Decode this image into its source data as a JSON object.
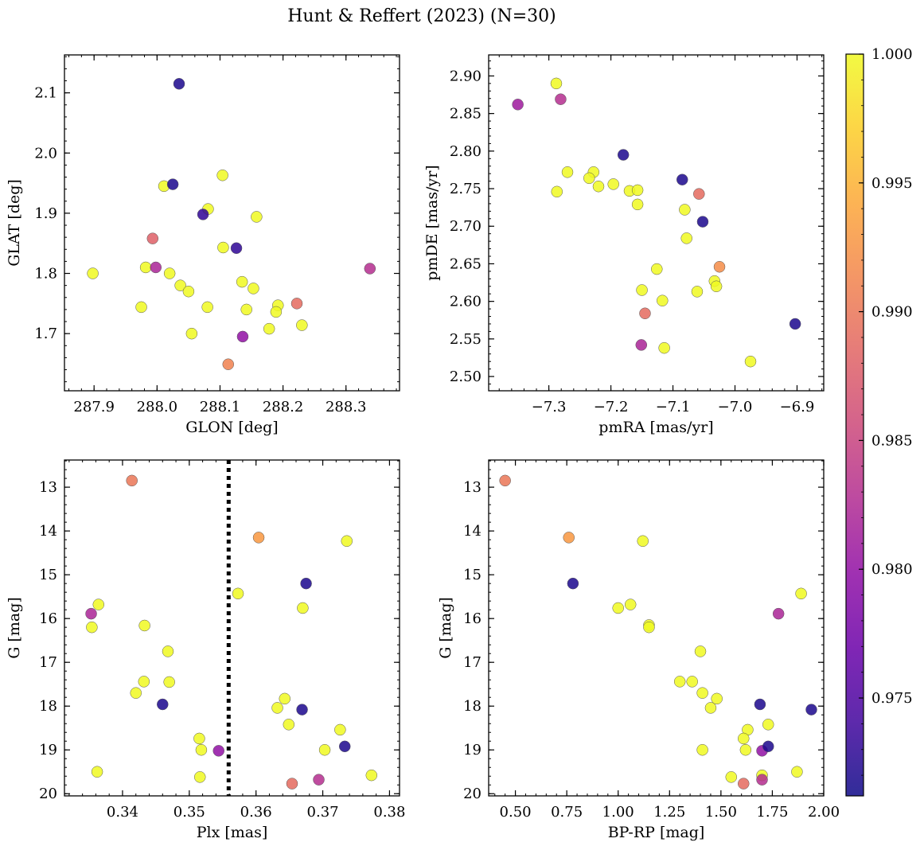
{
  "figure": {
    "title": "Hunt & Reffert (2023) (N=30)"
  },
  "colorbar": {
    "range": [
      0.9712,
      1.0
    ],
    "colormap": "plasma",
    "ticks": [
      {
        "value": 1.0,
        "label": "1.000"
      },
      {
        "value": 0.995,
        "label": "0.995"
      },
      {
        "value": 0.99,
        "label": "0.990"
      },
      {
        "value": 0.985,
        "label": "0.985"
      },
      {
        "value": 0.98,
        "label": "0.980"
      },
      {
        "value": 0.975,
        "label": "0.975"
      }
    ]
  },
  "chart_data": [
    {
      "type": "scatter",
      "xlabel": "GLON [deg]",
      "ylabel": "GLAT [deg]",
      "xlim": [
        287.853,
        288.385
      ],
      "ylim": [
        1.605,
        2.163
      ],
      "y_inverted": false,
      "xticks": [
        {
          "value": 287.9,
          "label": "287.9"
        },
        {
          "value": 288.0,
          "label": "288.0"
        },
        {
          "value": 288.1,
          "label": "288.1"
        },
        {
          "value": 288.2,
          "label": "288.2"
        },
        {
          "value": 288.3,
          "label": "288.3"
        }
      ],
      "yticks": [
        {
          "value": 1.7,
          "label": "1.7"
        },
        {
          "value": 1.8,
          "label": "1.8"
        },
        {
          "value": 1.9,
          "label": "1.9"
        },
        {
          "value": 2.0,
          "label": "2.0"
        },
        {
          "value": 2.1,
          "label": "2.1"
        }
      ],
      "points": [
        {
          "x": 288.035,
          "y": 2.115,
          "c": 0.972
        },
        {
          "x": 288.025,
          "y": 1.948,
          "c": 0.972
        },
        {
          "x": 288.011,
          "y": 1.945,
          "c": 1.0
        },
        {
          "x": 288.104,
          "y": 1.963,
          "c": 1.0
        },
        {
          "x": 288.081,
          "y": 1.907,
          "c": 1.0
        },
        {
          "x": 288.073,
          "y": 1.898,
          "c": 0.973
        },
        {
          "x": 288.158,
          "y": 1.894,
          "c": 1.0
        },
        {
          "x": 287.993,
          "y": 1.858,
          "c": 0.988
        },
        {
          "x": 288.105,
          "y": 1.843,
          "c": 1.0
        },
        {
          "x": 288.126,
          "y": 1.842,
          "c": 0.973
        },
        {
          "x": 287.982,
          "y": 1.81,
          "c": 1.0
        },
        {
          "x": 287.998,
          "y": 1.81,
          "c": 0.982
        },
        {
          "x": 287.898,
          "y": 1.8,
          "c": 1.0
        },
        {
          "x": 288.02,
          "y": 1.8,
          "c": 1.0
        },
        {
          "x": 288.338,
          "y": 1.808,
          "c": 0.983
        },
        {
          "x": 288.135,
          "y": 1.786,
          "c": 1.0
        },
        {
          "x": 288.037,
          "y": 1.78,
          "c": 1.0
        },
        {
          "x": 288.153,
          "y": 1.775,
          "c": 1.0
        },
        {
          "x": 288.05,
          "y": 1.77,
          "c": 1.0
        },
        {
          "x": 287.975,
          "y": 1.744,
          "c": 1.0
        },
        {
          "x": 288.08,
          "y": 1.744,
          "c": 1.0
        },
        {
          "x": 288.192,
          "y": 1.747,
          "c": 1.0
        },
        {
          "x": 288.222,
          "y": 1.75,
          "c": 0.989
        },
        {
          "x": 288.142,
          "y": 1.74,
          "c": 1.0
        },
        {
          "x": 288.189,
          "y": 1.736,
          "c": 1.0
        },
        {
          "x": 288.23,
          "y": 1.714,
          "c": 1.0
        },
        {
          "x": 288.178,
          "y": 1.708,
          "c": 1.0
        },
        {
          "x": 288.055,
          "y": 1.7,
          "c": 1.0
        },
        {
          "x": 288.136,
          "y": 1.695,
          "c": 0.98
        },
        {
          "x": 288.113,
          "y": 1.649,
          "c": 0.991
        }
      ]
    },
    {
      "type": "scatter",
      "xlabel": "pmRA [mas/yr]",
      "ylabel": "pmDE [mas/yr]",
      "xlim": [
        -7.397,
        -6.857
      ],
      "ylim": [
        2.481,
        2.928
      ],
      "y_inverted": false,
      "xticks": [
        {
          "value": -7.3,
          "label": "−7.3"
        },
        {
          "value": -7.2,
          "label": "−7.2"
        },
        {
          "value": -7.1,
          "label": "−7.1"
        },
        {
          "value": -7.0,
          "label": "−7.0"
        },
        {
          "value": -6.9,
          "label": "−6.9"
        }
      ],
      "yticks": [
        {
          "value": 2.5,
          "label": "2.50"
        },
        {
          "value": 2.55,
          "label": "2.55"
        },
        {
          "value": 2.6,
          "label": "2.60"
        },
        {
          "value": 2.65,
          "label": "2.65"
        },
        {
          "value": 2.7,
          "label": "2.70"
        },
        {
          "value": 2.75,
          "label": "2.75"
        },
        {
          "value": 2.8,
          "label": "2.80"
        },
        {
          "value": 2.85,
          "label": "2.85"
        },
        {
          "value": 2.9,
          "label": "2.90"
        }
      ],
      "points": [
        {
          "x": -7.288,
          "y": 2.89,
          "c": 1.0
        },
        {
          "x": -7.35,
          "y": 2.862,
          "c": 0.981
        },
        {
          "x": -7.281,
          "y": 2.869,
          "c": 0.983
        },
        {
          "x": -7.18,
          "y": 2.795,
          "c": 0.972
        },
        {
          "x": -7.27,
          "y": 2.772,
          "c": 1.0
        },
        {
          "x": -7.228,
          "y": 2.772,
          "c": 1.0
        },
        {
          "x": -7.235,
          "y": 2.764,
          "c": 1.0
        },
        {
          "x": -7.196,
          "y": 2.756,
          "c": 1.0
        },
        {
          "x": -7.22,
          "y": 2.753,
          "c": 1.0
        },
        {
          "x": -7.287,
          "y": 2.746,
          "c": 1.0
        },
        {
          "x": -7.17,
          "y": 2.747,
          "c": 1.0
        },
        {
          "x": -7.157,
          "y": 2.748,
          "c": 1.0
        },
        {
          "x": -7.157,
          "y": 2.729,
          "c": 1.0
        },
        {
          "x": -7.085,
          "y": 2.762,
          "c": 0.972
        },
        {
          "x": -7.058,
          "y": 2.743,
          "c": 0.989
        },
        {
          "x": -7.081,
          "y": 2.722,
          "c": 1.0
        },
        {
          "x": -7.052,
          "y": 2.706,
          "c": 0.972
        },
        {
          "x": -7.078,
          "y": 2.684,
          "c": 1.0
        },
        {
          "x": -7.126,
          "y": 2.643,
          "c": 1.0
        },
        {
          "x": -7.025,
          "y": 2.646,
          "c": 0.992
        },
        {
          "x": -7.033,
          "y": 2.627,
          "c": 1.0
        },
        {
          "x": -7.03,
          "y": 2.62,
          "c": 1.0
        },
        {
          "x": -7.15,
          "y": 2.615,
          "c": 1.0
        },
        {
          "x": -7.061,
          "y": 2.613,
          "c": 1.0
        },
        {
          "x": -7.117,
          "y": 2.601,
          "c": 1.0
        },
        {
          "x": -7.145,
          "y": 2.584,
          "c": 0.989
        },
        {
          "x": -7.151,
          "y": 2.542,
          "c": 0.982
        },
        {
          "x": -7.114,
          "y": 2.538,
          "c": 1.0
        },
        {
          "x": -6.903,
          "y": 2.57,
          "c": 0.972
        },
        {
          "x": -6.975,
          "y": 2.52,
          "c": 1.0
        }
      ]
    },
    {
      "type": "scatter",
      "xlabel": "Plx [mas]",
      "ylabel": "G [mag]",
      "xlim": [
        0.3313,
        0.3815
      ],
      "ylim": [
        12.38,
        20.05
      ],
      "y_inverted": true,
      "vline": {
        "x": 0.3559,
        "style": "dotted",
        "color": "#000000"
      },
      "xticks": [
        {
          "value": 0.34,
          "label": "0.34"
        },
        {
          "value": 0.35,
          "label": "0.35"
        },
        {
          "value": 0.36,
          "label": "0.36"
        },
        {
          "value": 0.37,
          "label": "0.37"
        },
        {
          "value": 0.38,
          "label": "0.38"
        }
      ],
      "yticks": [
        {
          "value": 13,
          "label": "13"
        },
        {
          "value": 14,
          "label": "14"
        },
        {
          "value": 15,
          "label": "15"
        },
        {
          "value": 16,
          "label": "16"
        },
        {
          "value": 17,
          "label": "17"
        },
        {
          "value": 18,
          "label": "18"
        },
        {
          "value": 19,
          "label": "19"
        },
        {
          "value": 20,
          "label": "20"
        }
      ],
      "points": [
        {
          "x": 0.3414,
          "y": 12.85,
          "c": 0.99
        },
        {
          "x": 0.3604,
          "y": 14.15,
          "c": 0.993
        },
        {
          "x": 0.3736,
          "y": 14.23,
          "c": 1.0
        },
        {
          "x": 0.3675,
          "y": 15.2,
          "c": 0.972
        },
        {
          "x": 0.3573,
          "y": 15.43,
          "c": 1.0
        },
        {
          "x": 0.3364,
          "y": 15.68,
          "c": 1.0
        },
        {
          "x": 0.367,
          "y": 15.76,
          "c": 1.0
        },
        {
          "x": 0.3353,
          "y": 15.89,
          "c": 0.982
        },
        {
          "x": 0.3354,
          "y": 16.2,
          "c": 1.0
        },
        {
          "x": 0.3433,
          "y": 16.16,
          "c": 1.0
        },
        {
          "x": 0.3468,
          "y": 16.75,
          "c": 1.0
        },
        {
          "x": 0.3432,
          "y": 17.44,
          "c": 1.0
        },
        {
          "x": 0.347,
          "y": 17.45,
          "c": 1.0
        },
        {
          "x": 0.342,
          "y": 17.7,
          "c": 1.0
        },
        {
          "x": 0.3643,
          "y": 17.83,
          "c": 1.0
        },
        {
          "x": 0.346,
          "y": 17.96,
          "c": 0.972
        },
        {
          "x": 0.3632,
          "y": 18.04,
          "c": 1.0
        },
        {
          "x": 0.3669,
          "y": 18.08,
          "c": 0.972
        },
        {
          "x": 0.3649,
          "y": 18.42,
          "c": 1.0
        },
        {
          "x": 0.3726,
          "y": 18.54,
          "c": 1.0
        },
        {
          "x": 0.3515,
          "y": 18.74,
          "c": 1.0
        },
        {
          "x": 0.3733,
          "y": 18.92,
          "c": 0.972
        },
        {
          "x": 0.3518,
          "y": 19.0,
          "c": 1.0
        },
        {
          "x": 0.3544,
          "y": 19.02,
          "c": 0.98
        },
        {
          "x": 0.3703,
          "y": 19.0,
          "c": 1.0
        },
        {
          "x": 0.3362,
          "y": 19.5,
          "c": 1.0
        },
        {
          "x": 0.3516,
          "y": 19.62,
          "c": 1.0
        },
        {
          "x": 0.3773,
          "y": 19.58,
          "c": 1.0
        },
        {
          "x": 0.3654,
          "y": 19.77,
          "c": 0.989
        },
        {
          "x": 0.3694,
          "y": 19.68,
          "c": 0.983
        }
      ]
    },
    {
      "type": "scatter",
      "xlabel": "BP-RP [mag]",
      "ylabel": "G [mag]",
      "xlim": [
        0.37,
        2.0
      ],
      "ylim": [
        12.38,
        20.05
      ],
      "y_inverted": true,
      "xticks": [
        {
          "value": 0.5,
          "label": "0.50"
        },
        {
          "value": 0.75,
          "label": "0.75"
        },
        {
          "value": 1.0,
          "label": "1.00"
        },
        {
          "value": 1.25,
          "label": "1.25"
        },
        {
          "value": 1.5,
          "label": "1.50"
        },
        {
          "value": 1.75,
          "label": "1.75"
        },
        {
          "value": 2.0,
          "label": "2.00"
        }
      ],
      "yticks": [
        {
          "value": 13,
          "label": "13"
        },
        {
          "value": 14,
          "label": "14"
        },
        {
          "value": 15,
          "label": "15"
        },
        {
          "value": 16,
          "label": "16"
        },
        {
          "value": 17,
          "label": "17"
        },
        {
          "value": 18,
          "label": "18"
        },
        {
          "value": 19,
          "label": "19"
        },
        {
          "value": 20,
          "label": "20"
        }
      ],
      "points": [
        {
          "x": 0.45,
          "y": 12.85,
          "c": 0.99
        },
        {
          "x": 0.76,
          "y": 14.15,
          "c": 0.993
        },
        {
          "x": 1.12,
          "y": 14.23,
          "c": 1.0
        },
        {
          "x": 0.78,
          "y": 15.2,
          "c": 0.972
        },
        {
          "x": 1.89,
          "y": 15.43,
          "c": 1.0
        },
        {
          "x": 1.06,
          "y": 15.68,
          "c": 1.0
        },
        {
          "x": 1.0,
          "y": 15.76,
          "c": 1.0
        },
        {
          "x": 1.78,
          "y": 15.89,
          "c": 0.982
        },
        {
          "x": 1.15,
          "y": 16.15,
          "c": 1.0
        },
        {
          "x": 1.15,
          "y": 16.2,
          "c": 1.0
        },
        {
          "x": 1.4,
          "y": 16.75,
          "c": 1.0
        },
        {
          "x": 1.3,
          "y": 17.44,
          "c": 1.0
        },
        {
          "x": 1.36,
          "y": 17.44,
          "c": 1.0
        },
        {
          "x": 1.41,
          "y": 17.7,
          "c": 1.0
        },
        {
          "x": 1.48,
          "y": 17.83,
          "c": 1.0
        },
        {
          "x": 1.69,
          "y": 17.96,
          "c": 0.972
        },
        {
          "x": 1.45,
          "y": 18.04,
          "c": 1.0
        },
        {
          "x": 1.94,
          "y": 18.08,
          "c": 0.972
        },
        {
          "x": 1.73,
          "y": 18.42,
          "c": 1.0
        },
        {
          "x": 1.63,
          "y": 18.54,
          "c": 1.0
        },
        {
          "x": 1.61,
          "y": 18.74,
          "c": 1.0
        },
        {
          "x": 1.73,
          "y": 18.92,
          "c": 0.972
        },
        {
          "x": 1.41,
          "y": 19.0,
          "c": 1.0
        },
        {
          "x": 1.62,
          "y": 19.0,
          "c": 1.0
        },
        {
          "x": 1.7,
          "y": 19.02,
          "c": 0.98
        },
        {
          "x": 1.87,
          "y": 19.5,
          "c": 1.0
        },
        {
          "x": 1.55,
          "y": 19.62,
          "c": 1.0
        },
        {
          "x": 1.7,
          "y": 19.58,
          "c": 1.0
        },
        {
          "x": 1.61,
          "y": 19.77,
          "c": 0.989
        },
        {
          "x": 1.7,
          "y": 19.68,
          "c": 0.983
        }
      ]
    }
  ]
}
